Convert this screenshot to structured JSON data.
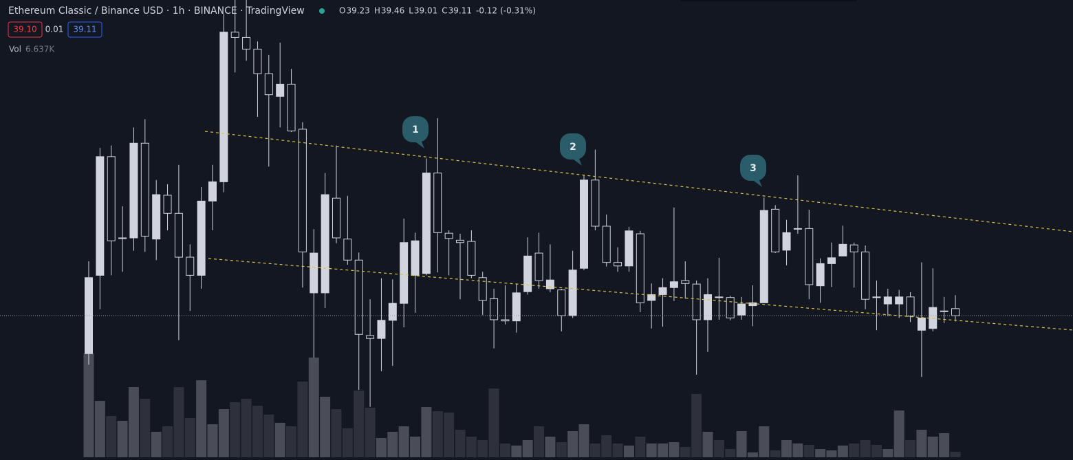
{
  "chart_data": {
    "type": "candlestick",
    "title": "Ethereum Classic / Binance USD · 1h · BINANCE · TradingView",
    "ohlc_keys": [
      "O",
      "H",
      "L",
      "C"
    ],
    "change": "-0.12",
    "change_pct": "(-0.31%)",
    "bid": "39.10",
    "spread": "0.01",
    "ask": "39.11",
    "up_color": "#d1d4dc",
    "down_color": "#131722",
    "ylim": [
      36.64,
      44.51
    ],
    "candles": [
      [
        38.46,
        40.04,
        38.27,
        39.76
      ],
      [
        39.8,
        41.98,
        39.22,
        41.83
      ],
      [
        41.83,
        42.02,
        39.8,
        40.39
      ],
      [
        40.44,
        40.98,
        39.86,
        40.44
      ],
      [
        40.44,
        42.33,
        40.22,
        42.06
      ],
      [
        42.06,
        42.47,
        40.2,
        40.47
      ],
      [
        40.42,
        41.43,
        40.06,
        41.18
      ],
      [
        41.17,
        41.36,
        40.57,
        40.86
      ],
      [
        40.86,
        41.69,
        38.69,
        40.11
      ],
      [
        40.11,
        40.33,
        39.19,
        39.8
      ],
      [
        39.8,
        41.31,
        39.57,
        41.07
      ],
      [
        41.07,
        41.69,
        40.57,
        41.4
      ],
      [
        41.4,
        44.27,
        41.22,
        43.96
      ],
      [
        43.96,
        44.51,
        43.27,
        43.87
      ],
      [
        43.87,
        44.51,
        43.47,
        43.67
      ],
      [
        43.67,
        43.8,
        42.51,
        43.25
      ],
      [
        43.25,
        43.57,
        41.66,
        42.89
      ],
      [
        42.86,
        43.78,
        42.33,
        43.07
      ],
      [
        43.07,
        43.33,
        42.25,
        42.27
      ],
      [
        42.3,
        42.42,
        39.59,
        40.2
      ],
      [
        39.5,
        40.59,
        38.39,
        40.18
      ],
      [
        39.5,
        41.55,
        39.24,
        41.18
      ],
      [
        41.12,
        42.02,
        40.35,
        40.44
      ],
      [
        40.42,
        41.16,
        39.98,
        40.06
      ],
      [
        40.06,
        40.19,
        37.84,
        38.79
      ],
      [
        38.77,
        39.39,
        37.55,
        38.72
      ],
      [
        38.72,
        39.75,
        38.16,
        39.03
      ],
      [
        39.03,
        39.73,
        38.25,
        39.32
      ],
      [
        39.32,
        40.77,
        38.91,
        40.36
      ],
      [
        39.8,
        40.53,
        39.16,
        40.39
      ],
      [
        39.83,
        41.8,
        39.8,
        41.55
      ],
      [
        41.55,
        42.49,
        39.85,
        40.53
      ],
      [
        40.52,
        40.57,
        39.8,
        40.43
      ],
      [
        40.4,
        40.51,
        39.39,
        40.36
      ],
      [
        40.38,
        40.57,
        39.75,
        39.8
      ],
      [
        39.76,
        39.86,
        39.12,
        39.37
      ],
      [
        39.4,
        39.57,
        38.55,
        39.04
      ],
      [
        39.04,
        39.63,
        38.96,
        39.02
      ],
      [
        39.02,
        39.66,
        38.82,
        39.5
      ],
      [
        39.52,
        40.45,
        39.47,
        40.13
      ],
      [
        40.18,
        40.53,
        39.57,
        39.71
      ],
      [
        39.57,
        40.33,
        39.51,
        39.72
      ],
      [
        39.55,
        39.57,
        38.84,
        39.11
      ],
      [
        39.11,
        40.22,
        39.07,
        39.89
      ],
      [
        39.92,
        41.52,
        39.89,
        41.43
      ],
      [
        41.43,
        41.95,
        40.57,
        40.64
      ],
      [
        40.64,
        40.84,
        39.95,
        40.02
      ],
      [
        40.02,
        40.28,
        39.86,
        39.96
      ],
      [
        39.96,
        40.63,
        39.86,
        40.56
      ],
      [
        40.51,
        40.56,
        39.17,
        39.33
      ],
      [
        39.37,
        39.66,
        38.89,
        39.47
      ],
      [
        39.47,
        39.75,
        38.92,
        39.59
      ],
      [
        39.59,
        40.96,
        39.36,
        39.69
      ],
      [
        39.71,
        40.04,
        39.4,
        39.66
      ],
      [
        39.65,
        39.71,
        38.1,
        39.04
      ],
      [
        39.04,
        39.75,
        38.49,
        39.47
      ],
      [
        39.43,
        40.1,
        39.04,
        39.42
      ],
      [
        39.42,
        39.45,
        39.03,
        39.07
      ],
      [
        39.12,
        39.43,
        39.04,
        39.31
      ],
      [
        39.28,
        39.63,
        38.93,
        39.33
      ],
      [
        39.33,
        41.13,
        39.33,
        40.91
      ],
      [
        40.93,
        41.0,
        40.18,
        40.2
      ],
      [
        40.23,
        40.75,
        39.97,
        40.53
      ],
      [
        40.59,
        41.51,
        40.51,
        40.6
      ],
      [
        40.6,
        40.92,
        39.39,
        39.64
      ],
      [
        39.62,
        40.09,
        39.33,
        40.0
      ],
      [
        40.0,
        40.36,
        39.6,
        40.1
      ],
      [
        40.13,
        40.65,
        40.13,
        40.33
      ],
      [
        40.32,
        40.36,
        39.59,
        40.2
      ],
      [
        40.2,
        40.31,
        39.22,
        39.39
      ],
      [
        39.43,
        39.71,
        38.86,
        39.42
      ],
      [
        39.31,
        39.57,
        39.1,
        39.43
      ],
      [
        39.31,
        39.55,
        39.07,
        39.43
      ],
      [
        39.43,
        39.51,
        39.0,
        39.1
      ],
      [
        38.86,
        40.02,
        38.06,
        39.07
      ],
      [
        38.89,
        39.92,
        38.84,
        39.25
      ],
      [
        39.19,
        39.43,
        38.98,
        39.19
      ],
      [
        39.23,
        39.46,
        39.01,
        39.11
      ]
    ],
    "volume": {
      "label": "Vol",
      "last_label": "6.637K",
      "up_color": "#4a4d57",
      "down_color": "#2e313b",
      "ylim": [
        0,
        550
      ],
      "values": [
        125.8,
        68.3,
        50,
        44.2,
        85,
        70.8,
        30.8,
        37.5,
        85,
        47.5,
        93.3,
        40,
        58.3,
        66.7,
        70.8,
        62.5,
        51.7,
        41.7,
        37.5,
        91.7,
        120.8,
        73.3,
        58.3,
        35,
        80.8,
        60,
        23.3,
        30.8,
        37.5,
        25,
        60.8,
        55.8,
        54.2,
        33.3,
        25,
        20.8,
        83.3,
        16.7,
        14.2,
        20.8,
        37.5,
        25,
        18.3,
        31.7,
        40,
        16.7,
        26.7,
        16.7,
        14.2,
        25,
        16.7,
        16.7,
        18.3,
        12.5,
        76.7,
        30.8,
        20.8,
        10,
        31.7,
        5.8,
        37.5,
        8.3,
        20.8,
        16.7,
        15,
        10,
        8.3,
        14.2,
        16.7,
        20.8,
        15,
        10,
        56.7,
        20.8,
        33.3,
        25,
        29.2,
        6.637
      ]
    },
    "annotations": [
      "1",
      "2",
      "3"
    ]
  }
}
